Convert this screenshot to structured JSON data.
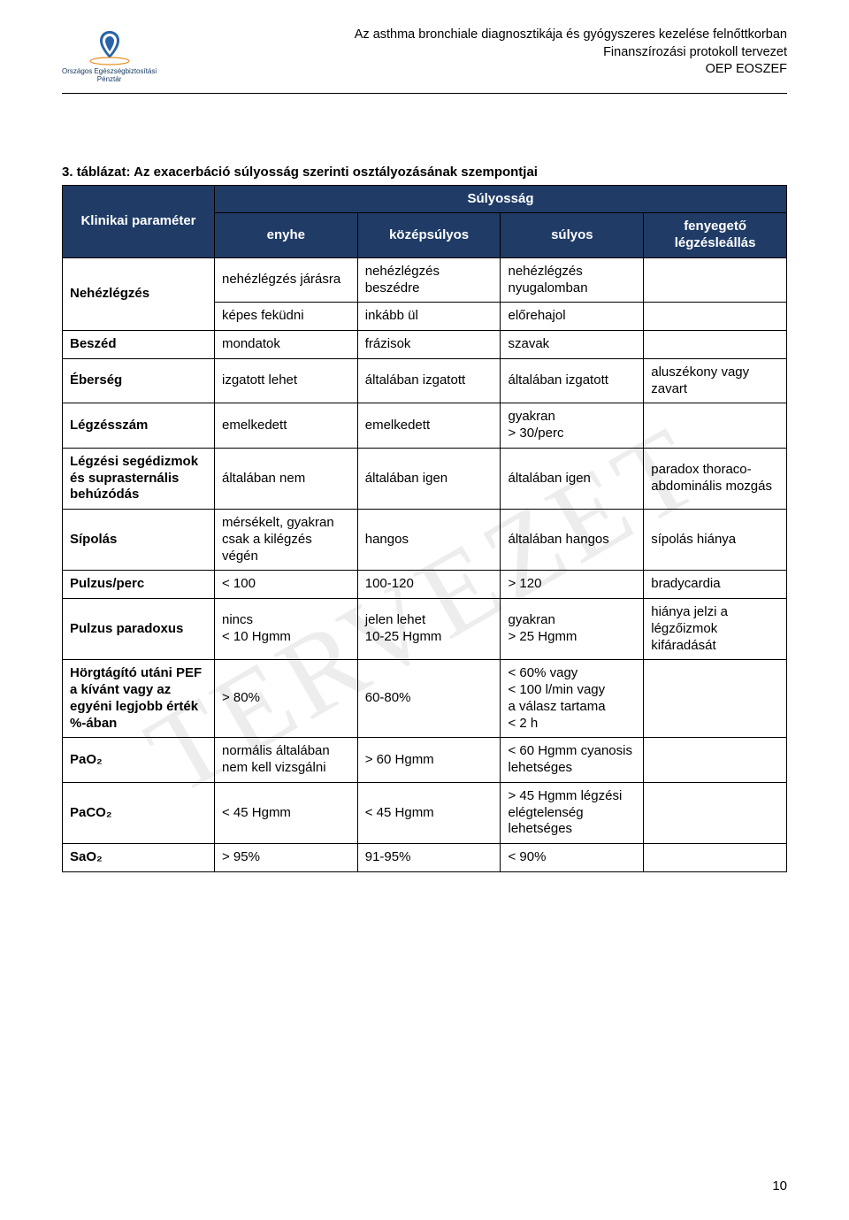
{
  "header": {
    "logo_line1": "Országos Egészségbiztosítási",
    "logo_line2": "Pénztár",
    "line1": "Az asthma bronchiale diagnosztikája és gyógyszeres kezelése felnőttkorban",
    "line2": "Finanszírozási protokoll tervezet",
    "line3": "OEP EOSZEF"
  },
  "watermark": "TERVEZET",
  "caption": "3. táblázat: Az exacerbáció súlyosság szerinti osztályozásának szempontjai",
  "table": {
    "header_param": "Klinikai paraméter",
    "header_span": "Súlyosság",
    "cols": [
      "enyhe",
      "középsúlyos",
      "súlyos",
      "fenyegető légzésleállás"
    ],
    "header_bg": "#1f3b66",
    "header_fg": "#ffffff",
    "border_color": "#000000",
    "font_size": 15
  },
  "rows": [
    {
      "param": "Nehézlégzés",
      "c1": "nehézlégzés járásra",
      "c2": "nehézlégzés beszédre",
      "c3": "nehézlégzés nyugalomban",
      "c4": ""
    },
    {
      "param": "",
      "c1": "képes feküdni",
      "c2": "inkább ül",
      "c3": "előrehajol",
      "c4": ""
    },
    {
      "param": "Beszéd",
      "c1": "mondatok",
      "c2": "frázisok",
      "c3": "szavak",
      "c4": ""
    },
    {
      "param": "Éberség",
      "c1": "izgatott lehet",
      "c2": "általában izgatott",
      "c3": "általában izgatott",
      "c4": "aluszékony vagy zavart"
    },
    {
      "param": "Légzésszám",
      "c1": "emelkedett",
      "c2": "emelkedett",
      "c3": "gyakran\n> 30/perc",
      "c4": ""
    },
    {
      "param": "Légzési segédizmok és suprasternális behúzódás",
      "c1": "általában nem",
      "c2": "általában igen",
      "c3": "általában igen",
      "c4": "paradox thoraco-abdominális mozgás"
    },
    {
      "param": "Sípolás",
      "c1": "mérsékelt, gyakran csak a kilégzés végén",
      "c2": "hangos",
      "c3": "általában hangos",
      "c4": "sípolás hiánya"
    },
    {
      "param": "Pulzus/perc",
      "c1": "< 100",
      "c2": "100-120",
      "c3": "> 120",
      "c4": "bradycardia"
    },
    {
      "param": "Pulzus paradoxus",
      "c1": "nincs\n< 10 Hgmm",
      "c2": "jelen lehet\n10-25 Hgmm",
      "c3": "gyakran\n> 25 Hgmm",
      "c4": "hiánya jelzi a légzőizmok kifáradását"
    },
    {
      "param": "Hörgtágító utáni PEF a kívánt vagy az egyéni legjobb érték %-ában",
      "c1": "> 80%",
      "c2": "60-80%",
      "c3": "< 60% vagy\n< 100 l/min vagy\na válasz tartama\n< 2 h",
      "c4": ""
    },
    {
      "param": "PaO₂",
      "c1": "normális általában nem kell vizsgálni",
      "c2": "> 60 Hgmm",
      "c3": "< 60 Hgmm cyanosis lehetséges",
      "c4": ""
    },
    {
      "param": "PaCO₂",
      "c1": "< 45 Hgmm",
      "c2": "< 45 Hgmm",
      "c3": "> 45 Hgmm légzési elégtelenség lehetséges",
      "c4": ""
    },
    {
      "param": "SaO₂",
      "c1": "> 95%",
      "c2": "91-95%",
      "c3": "< 90%",
      "c4": ""
    }
  ],
  "rows_nehezlegzes_rowspan": 2,
  "page_number": "10"
}
